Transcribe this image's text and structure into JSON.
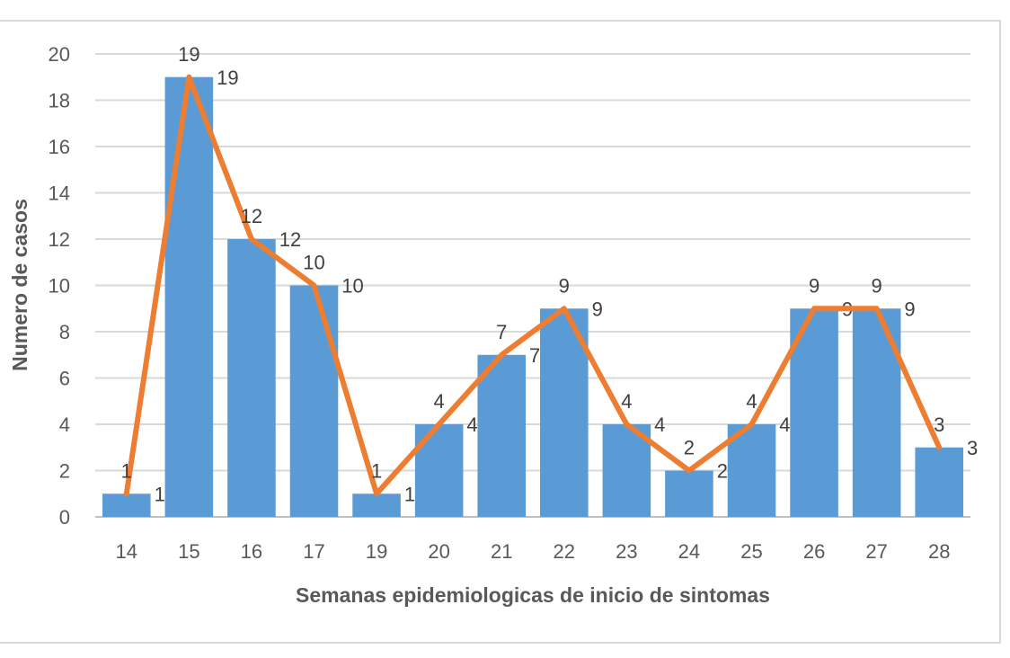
{
  "chart_data": {
    "type": "bar",
    "title": "",
    "xlabel": "Semanas epidemiologicas de inicio de sintomas",
    "ylabel": "Numero de casos",
    "ylim": [
      0,
      20
    ],
    "yticks": [
      0,
      2,
      4,
      6,
      8,
      10,
      12,
      14,
      16,
      18,
      20
    ],
    "grid": true,
    "legend": "none",
    "categories": [
      "14",
      "15",
      "16",
      "17",
      "19",
      "20",
      "21",
      "22",
      "23",
      "24",
      "25",
      "26",
      "27",
      "28"
    ],
    "series": [
      {
        "type": "bar",
        "color": "#5b9bd5",
        "values": [
          1,
          19,
          12,
          10,
          1,
          4,
          7,
          9,
          4,
          2,
          4,
          9,
          9,
          3
        ]
      },
      {
        "type": "line",
        "color": "#ed7d31",
        "values": [
          1,
          19,
          12,
          10,
          1,
          4,
          7,
          9,
          4,
          2,
          4,
          9,
          9,
          3
        ]
      }
    ]
  }
}
